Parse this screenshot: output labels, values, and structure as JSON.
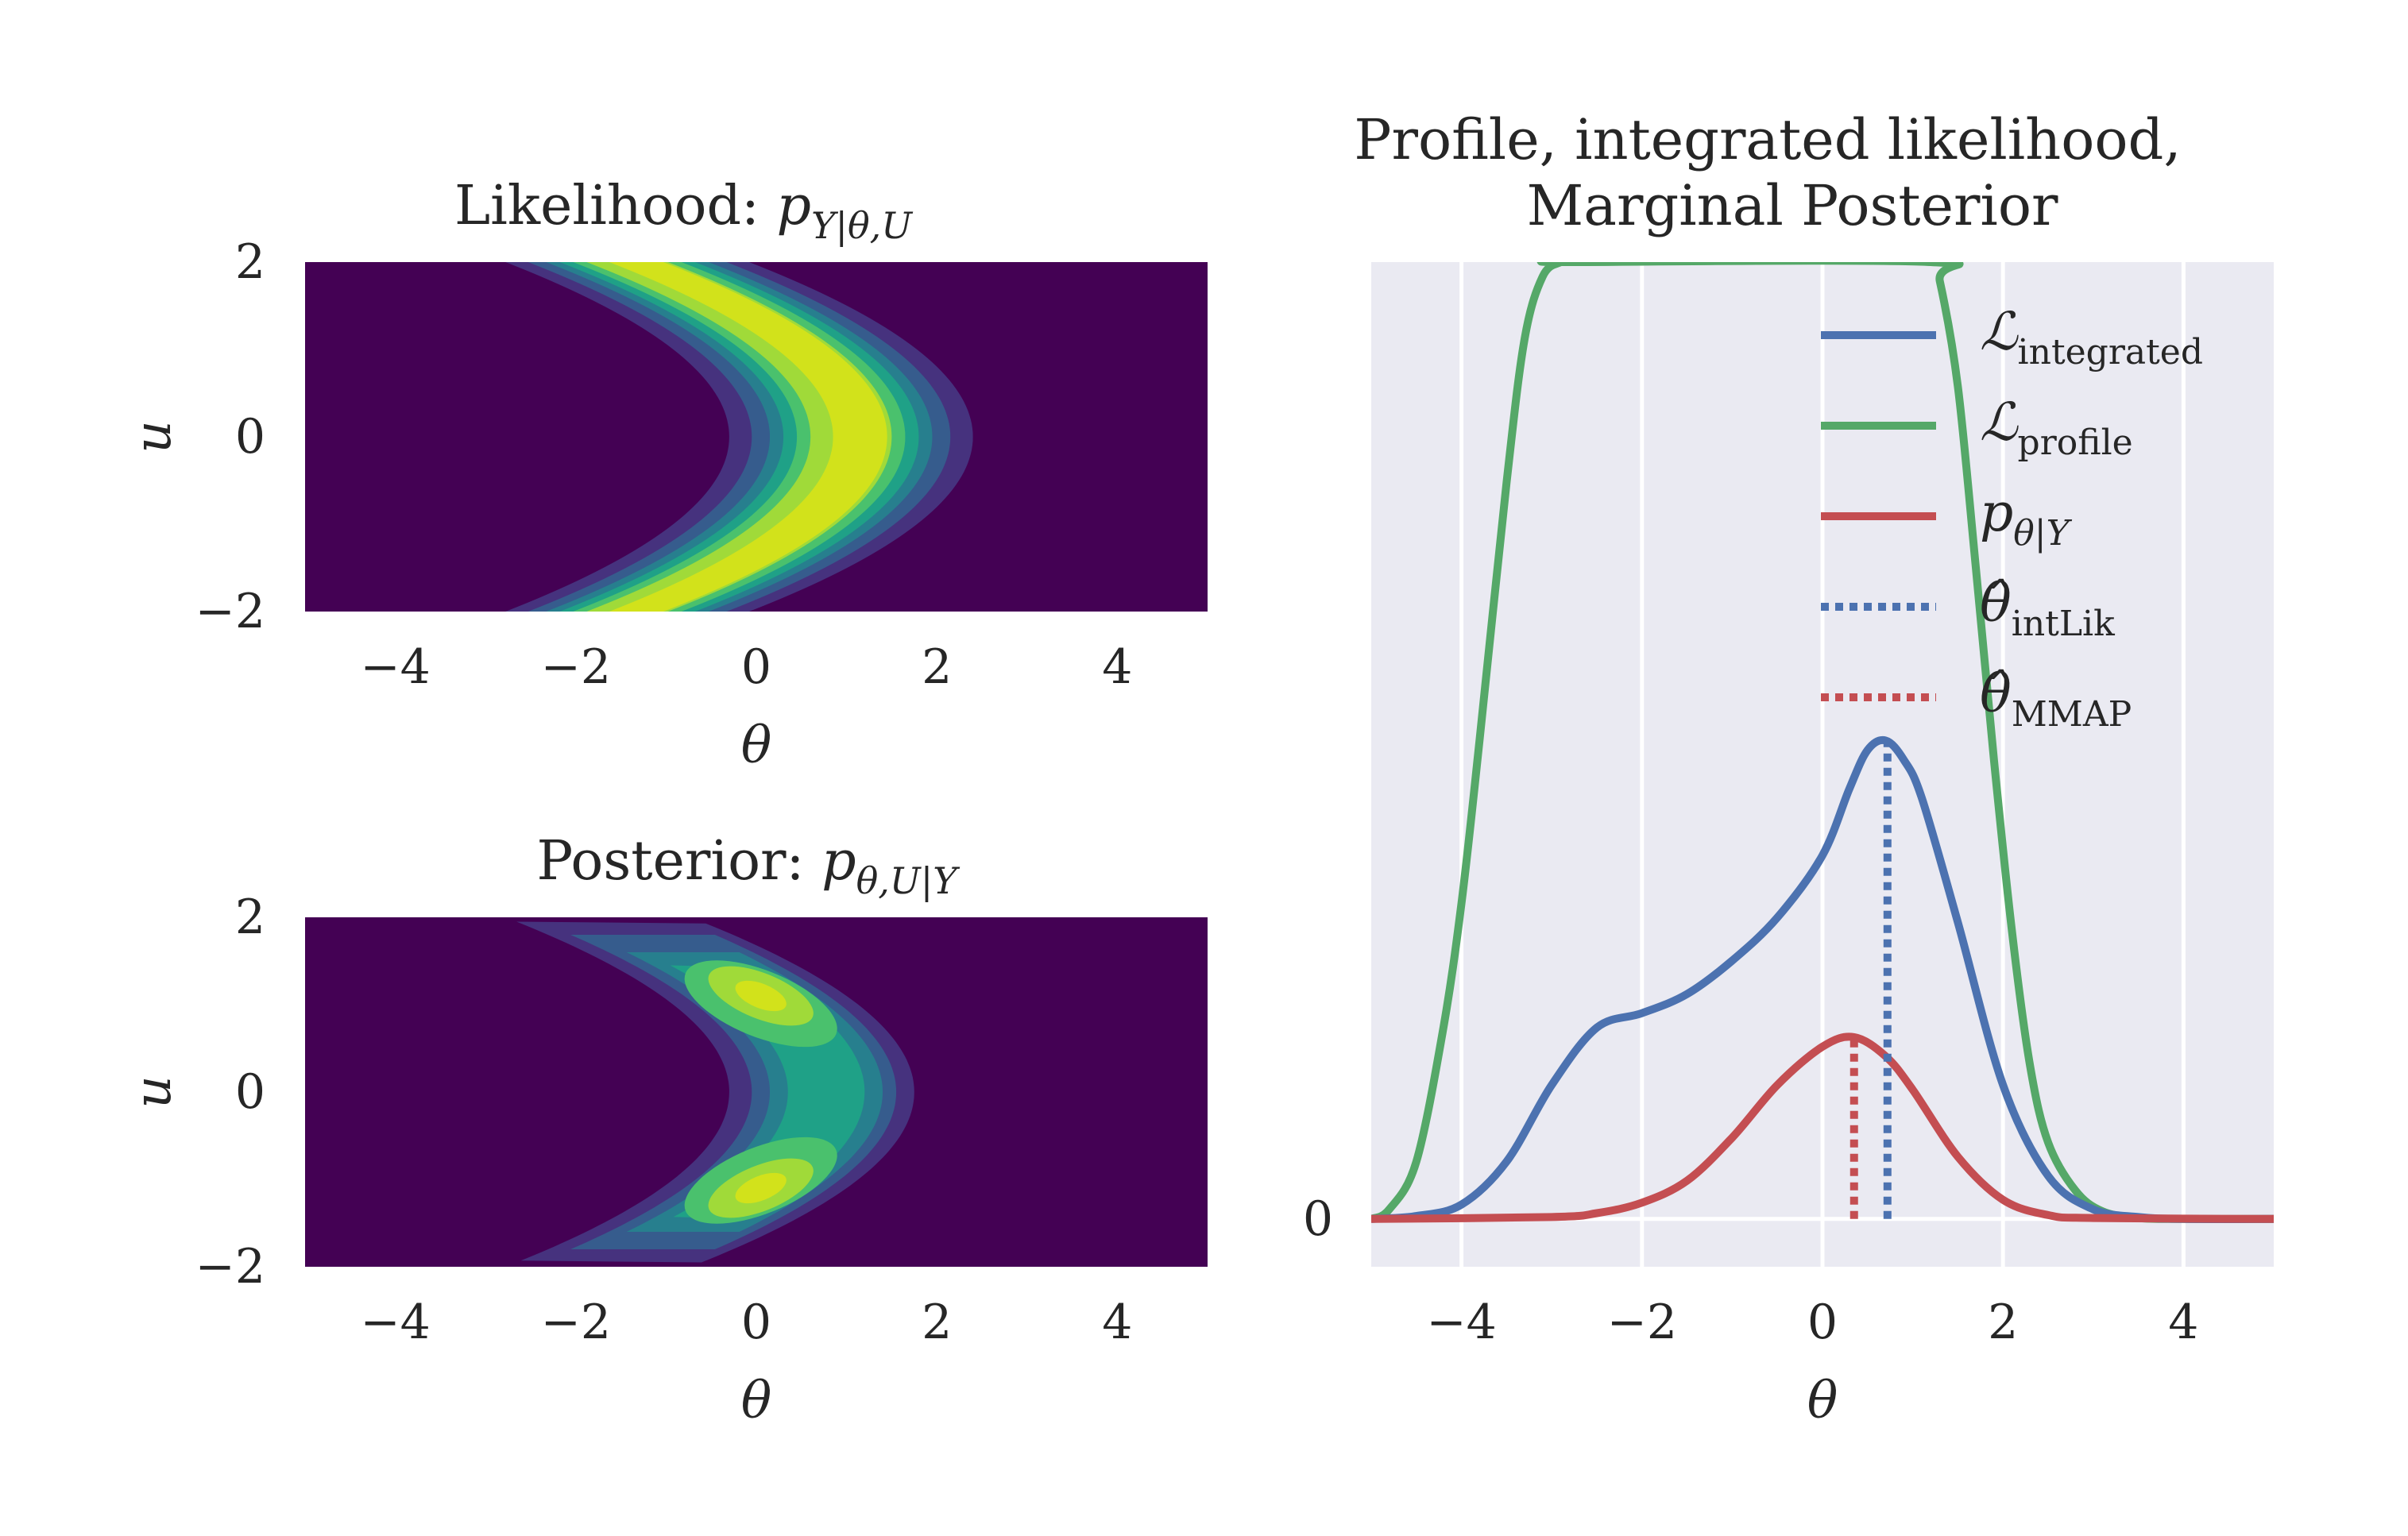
{
  "chart_data": [
    {
      "type": "heatmap",
      "panel": "likelihood",
      "title": "Likelihood: ",
      "title_math": "p",
      "title_sub": "Y|θ,U",
      "xlabel": "θ",
      "ylabel": "u",
      "xlim": [
        -5,
        5
      ],
      "ylim": [
        -2,
        2
      ],
      "xticks": [
        -4,
        -2,
        0,
        2,
        4
      ],
      "yticks": [
        -2,
        0,
        2
      ],
      "xtick_labels": [
        "−4",
        "−2",
        "0",
        "2",
        "4"
      ],
      "ytick_labels": [
        "−2",
        "0",
        "2"
      ],
      "colormap": "viridis",
      "levels": 8,
      "shape": "crescent opening left, ridge along theta = 1.3 - 0.6*u^2"
    },
    {
      "type": "heatmap",
      "panel": "posterior",
      "title": "Posterior: ",
      "title_math": "p",
      "title_sub": "θ,U|Y",
      "xlabel": "θ",
      "ylabel": "u",
      "xlim": [
        -5,
        5
      ],
      "ylim": [
        -2,
        2
      ],
      "xticks": [
        -4,
        -2,
        0,
        2,
        4
      ],
      "yticks": [
        -2,
        0,
        2
      ],
      "xtick_labels": [
        "−4",
        "−2",
        "0",
        "2",
        "4"
      ],
      "ytick_labels": [
        "−2",
        "0",
        "2"
      ],
      "colormap": "viridis",
      "levels": 8,
      "modes": [
        [
          0.0,
          1.1
        ],
        [
          0.0,
          -1.1
        ]
      ]
    },
    {
      "type": "line",
      "panel": "marginal",
      "title_line1": "Profile, integrated likelihood,",
      "title_line2": "Marginal Posterior",
      "xlabel": "θ",
      "xlim": [
        -5,
        5
      ],
      "ylim": [
        -0.05,
        1.0
      ],
      "xticks": [
        -4,
        -2,
        0,
        2,
        4
      ],
      "xtick_labels": [
        "−4",
        "−2",
        "0",
        "2",
        "4"
      ],
      "yticks": [
        0
      ],
      "ytick_labels": [
        "0"
      ],
      "grid": true,
      "legend_position": "upper-right",
      "series": [
        {
          "name": "ℒ",
          "sub": "integrated",
          "color": "#4c72b0",
          "style": "solid",
          "x": [
            -5,
            -4.5,
            -4,
            -3.5,
            -3,
            -2.5,
            -2,
            -1.5,
            -1,
            -0.5,
            0,
            0.3,
            0.5,
            0.7,
            0.9,
            1.1,
            1.5,
            2,
            2.5,
            3,
            3.5,
            4,
            5
          ],
          "y": [
            0,
            0.003,
            0.015,
            0.06,
            0.14,
            0.2,
            0.215,
            0.235,
            0.27,
            0.315,
            0.38,
            0.45,
            0.49,
            0.5,
            0.48,
            0.44,
            0.31,
            0.14,
            0.045,
            0.01,
            0.002,
            0,
            0
          ]
        },
        {
          "name": "ℒ",
          "sub": "profile",
          "color": "#55a868",
          "style": "solid",
          "x": [
            -5,
            -4.8,
            -4.5,
            -4.2,
            -4,
            -3.8,
            -3.5,
            -3.3,
            -3.1,
            -2.9,
            -2.8,
            1.2,
            1.3,
            1.5,
            1.7,
            1.9,
            2.1,
            2.3,
            2.5,
            2.8,
            3.1,
            3.5,
            4,
            5
          ],
          "y": [
            0,
            0.01,
            0.06,
            0.2,
            0.33,
            0.5,
            0.77,
            0.92,
            0.985,
            1.0,
            1.0,
            1.0,
            0.98,
            0.87,
            0.68,
            0.48,
            0.3,
            0.16,
            0.08,
            0.03,
            0.008,
            0.001,
            0,
            0
          ]
        },
        {
          "name": "p",
          "sub": "θ|Y",
          "color": "#c44e52",
          "style": "solid",
          "x": [
            -5,
            -3,
            -2.5,
            -2,
            -1.5,
            -1,
            -0.5,
            0,
            0.35,
            0.7,
            1,
            1.5,
            2,
            2.5,
            3,
            5
          ],
          "y": [
            0,
            0.002,
            0.006,
            0.017,
            0.04,
            0.085,
            0.14,
            0.18,
            0.19,
            0.17,
            0.135,
            0.065,
            0.02,
            0.004,
            0.001,
            0
          ]
        },
        {
          "name": "θ̂",
          "sub": "intLik",
          "color": "#4c72b0",
          "style": "dotted",
          "x_value": 0.72,
          "y_top": 0.5
        },
        {
          "name": "θ̂",
          "sub": "MMAP",
          "color": "#c44e52",
          "style": "dotted",
          "x_value": 0.35,
          "y_top": 0.19
        }
      ]
    }
  ]
}
